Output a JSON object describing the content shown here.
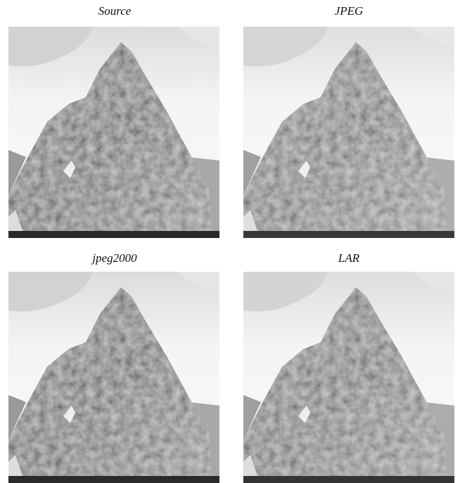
{
  "panels": [
    {
      "caption": "Source"
    },
    {
      "caption": "JPEG"
    },
    {
      "caption": "jpeg2000"
    },
    {
      "caption": "LAR"
    }
  ]
}
